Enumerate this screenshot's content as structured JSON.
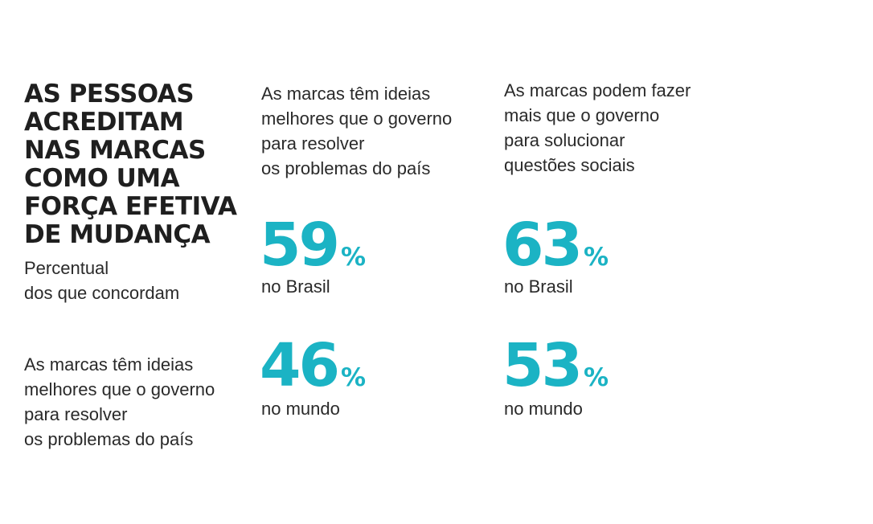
{
  "chart_data": {
    "type": "table",
    "title": [
      "AS PESSOAS",
      "ACREDITAM",
      "NAS MARCAS",
      "COMO UMA",
      "FORÇA EFETIVA",
      "DE MUDANÇA"
    ],
    "subtitle": [
      "Percentual",
      "dos que concordam"
    ],
    "columns": [
      {
        "label": [
          "As marcas têm ideias",
          "melhores que o governo",
          "para resolver",
          "os problemas do país"
        ],
        "brasil": {
          "value": 59,
          "unit": "%",
          "region": "no Brasil"
        },
        "mundo": {
          "value": 46,
          "unit": "%",
          "region": "no mundo"
        }
      },
      {
        "label": [
          "As marcas podem fazer",
          "mais que o governo",
          "para solucionar",
          "questões sociais"
        ],
        "brasil": {
          "value": 63,
          "unit": "%",
          "region": "no Brasil"
        },
        "mundo": {
          "value": 53,
          "unit": "%",
          "region": "no mundo"
        }
      }
    ],
    "row_label": [
      "As marcas têm ideias",
      "melhores que o governo",
      "para resolver",
      "os problemas do país"
    ],
    "accent_color": "#1bb3c4"
  }
}
